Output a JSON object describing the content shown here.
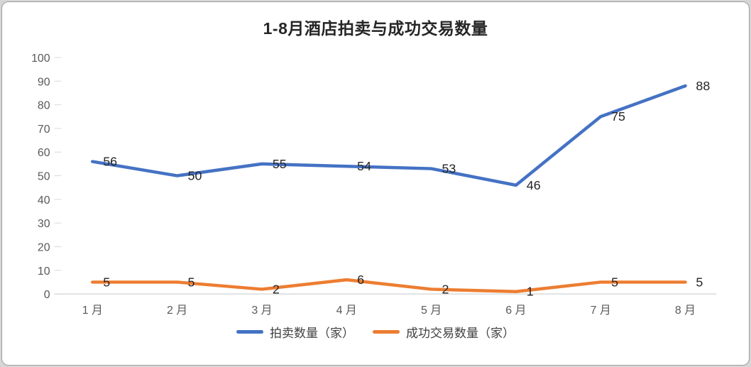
{
  "chart_data": {
    "type": "line",
    "title": "1-8月酒店拍卖与成功交易数量",
    "categories": [
      "1 月",
      "2 月",
      "3 月",
      "4 月",
      "5 月",
      "6 月",
      "7 月",
      "8 月"
    ],
    "series": [
      {
        "name": "拍卖数量（家）",
        "values": [
          56,
          50,
          55,
          54,
          53,
          46,
          75,
          88
        ],
        "color": "#4472c4"
      },
      {
        "name": "成功交易数量（家）",
        "values": [
          5,
          5,
          2,
          6,
          2,
          1,
          5,
          5
        ],
        "color": "#ed7d31"
      }
    ],
    "ylim": [
      0,
      100
    ],
    "yticks": [
      0,
      10,
      20,
      30,
      40,
      50,
      60,
      70,
      80,
      90,
      100
    ],
    "grid": false,
    "legend_position": "bottom",
    "show_data_labels": true,
    "colors": {
      "axis_label": "#595959",
      "data_label": "#262626",
      "axis_line": "#d9d9d9",
      "title": "#262626"
    }
  }
}
